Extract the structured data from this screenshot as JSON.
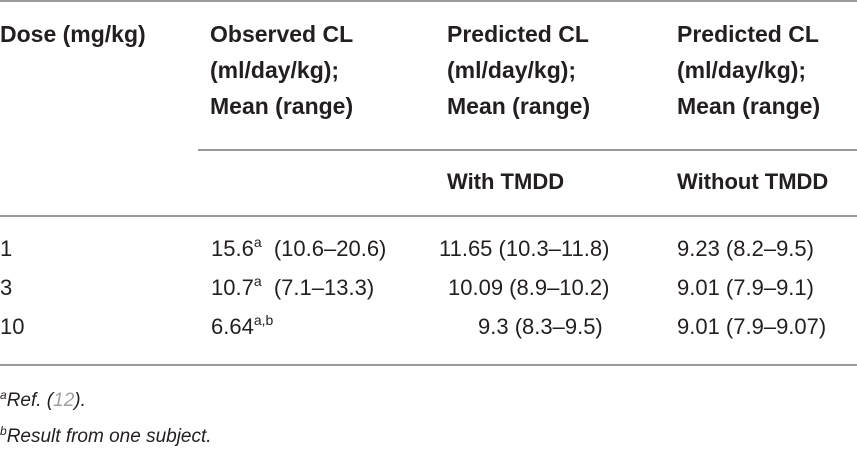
{
  "table": {
    "headers": {
      "dose": "Dose (mg/kg)",
      "observed": [
        "Observed CL",
        "(ml/day/kg);",
        "Mean (range)"
      ],
      "predicted_with": [
        "Predicted CL",
        "(ml/day/kg);",
        "Mean (range)"
      ],
      "predicted_without": [
        "Predicted CL",
        "(ml/day/kg);",
        "Mean (range)"
      ]
    },
    "subheaders": {
      "with": "With TMDD",
      "without": "Without TMDD"
    },
    "rows": [
      {
        "dose": "1",
        "observed_value": "15.6",
        "observed_sup": "a",
        "observed_range": "(10.6–20.6)",
        "with": "11.65 (10.3–11.8)",
        "without": "9.23 (8.2–9.5)"
      },
      {
        "dose": "3",
        "observed_value": "10.7",
        "observed_sup": "a",
        "observed_range": "(7.1–13.3)",
        "with": "10.09 (8.9–10.2)",
        "without": "9.01 (7.9–9.1)"
      },
      {
        "dose": "10",
        "observed_value": "6.64",
        "observed_sup": "a,b",
        "observed_range": "",
        "with": "9.3 (8.3–9.5)",
        "without": "9.01 (7.9–9.07)"
      }
    ]
  },
  "footnotes": [
    {
      "mark": "a",
      "text_before": "Ref. (",
      "ref": "12",
      "text_after": ")."
    },
    {
      "mark": "b",
      "text_before": "Result from one subject.",
      "ref": "",
      "text_after": ""
    }
  ]
}
